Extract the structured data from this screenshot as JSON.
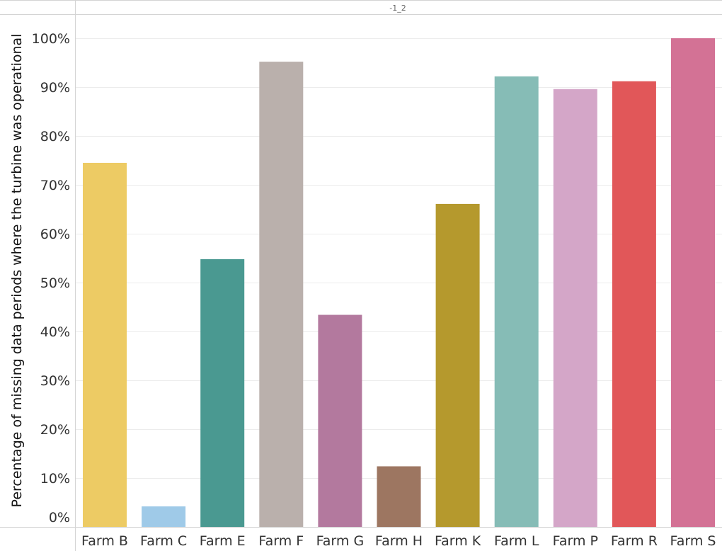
{
  "header": {
    "label": "-1_2"
  },
  "colors": {
    "gridline": "#ececec",
    "frame": "#d4d4d4",
    "text": "#333333"
  },
  "chart_data": {
    "type": "bar",
    "title": "",
    "xlabel": "",
    "ylabel": "Percentage of missing data periods where the turbine was operational",
    "ylim": [
      0,
      100
    ],
    "y_ticks": [
      0,
      10,
      20,
      30,
      40,
      50,
      60,
      70,
      80,
      90,
      100
    ],
    "y_tick_labels": [
      "0%",
      "10%",
      "20%",
      "30%",
      "40%",
      "50%",
      "60%",
      "70%",
      "80%",
      "90%",
      "100%"
    ],
    "grid": true,
    "legend": "none",
    "categories": [
      "Farm B",
      "Farm C",
      "Farm E",
      "Farm F",
      "Farm G",
      "Farm H",
      "Farm K",
      "Farm L",
      "Farm P",
      "Farm R",
      "Farm S"
    ],
    "values": [
      74.5,
      4.2,
      54.8,
      95.2,
      43.4,
      12.4,
      66.1,
      92.2,
      89.6,
      91.2,
      100
    ],
    "bar_colors": [
      "#edcb64",
      "#9fcae8",
      "#4a9991",
      "#bab0ac",
      "#b3799e",
      "#9d7661",
      "#b5992d",
      "#86bcb6",
      "#d4a6c8",
      "#e15759",
      "#d37295"
    ]
  }
}
